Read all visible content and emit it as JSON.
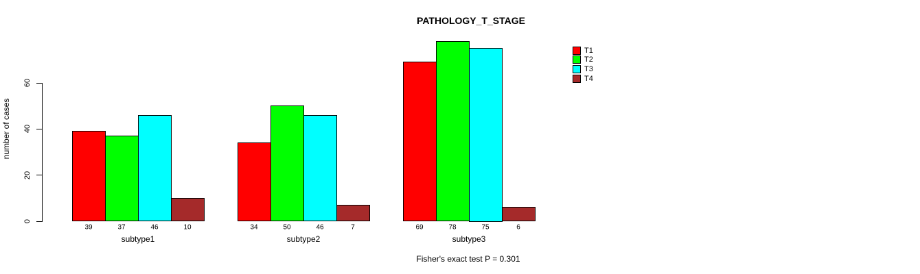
{
  "chart_data": {
    "type": "bar",
    "title": "PATHOLOGY_T_STAGE",
    "ylabel": "number of cases",
    "xlabel": "",
    "categories": [
      "subtype1",
      "subtype2",
      "subtype3"
    ],
    "series": [
      {
        "name": "T1",
        "color": "#FF0000",
        "values": [
          39,
          34,
          69
        ]
      },
      {
        "name": "T2",
        "color": "#00FF00",
        "values": [
          37,
          50,
          78
        ]
      },
      {
        "name": "T3",
        "color": "#00FFFF",
        "values": [
          46,
          46,
          75
        ]
      },
      {
        "name": "T4",
        "color": "#A52A2A",
        "values": [
          10,
          7,
          6
        ]
      }
    ],
    "yticks": [
      0,
      20,
      40,
      60
    ],
    "ylim": [
      0,
      60
    ],
    "grid": false,
    "bar_value_labels": true,
    "legend": {
      "position": "top-right",
      "entries": [
        "T1",
        "T2",
        "T3",
        "T4"
      ]
    },
    "annotation": "Fisher's exact test P = 0.301",
    "colors": {
      "bar_border": "#000000",
      "axis": "#000000",
      "background": "#FFFFFF"
    }
  }
}
